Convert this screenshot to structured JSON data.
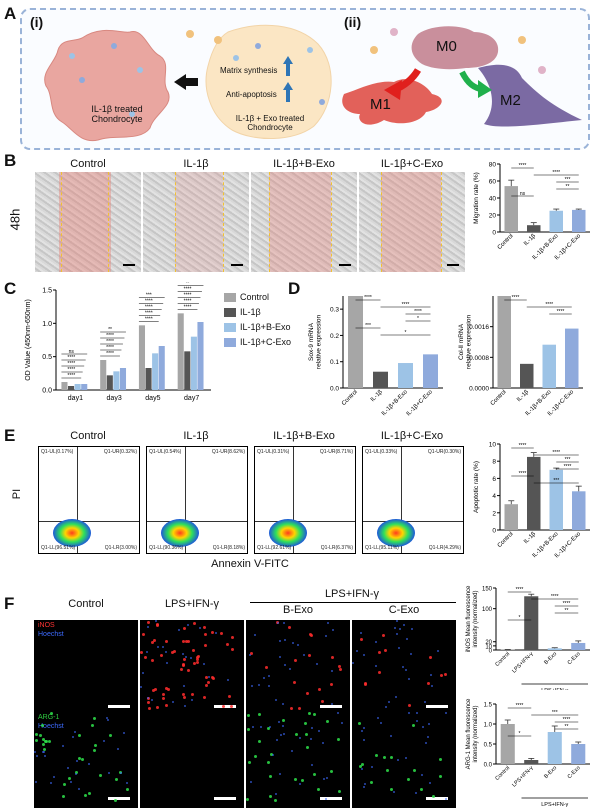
{
  "panels": {
    "A": "A",
    "B": "B",
    "C": "C",
    "D": "D",
    "E": "E",
    "F": "F"
  },
  "panelA": {
    "sub_i": "(i)",
    "sub_ii": "(ii)",
    "cell1_label": "IL-1β treated\nChondrocyte",
    "cell2_label": "IL-1β + Exo treated\nChondrocyte",
    "matrix": "Matrix synthesis",
    "antiapop": "Anti-apoptosis",
    "m0": "M0",
    "m1": "M1",
    "m2": "M2",
    "colors": {
      "border": "#9ab3d8",
      "cell1": "#e9a6a0",
      "cell2": "#fbe6c4",
      "m0": "#c98f9c",
      "m1": "#e2615a",
      "m2": "#7b6aa3",
      "red_arrow": "#e0201d",
      "green_arrow": "#20b04c"
    }
  },
  "panelB": {
    "timepoint": "48h",
    "groups": [
      "Control",
      "IL-1β",
      "IL-1β+B-Exo",
      "IL-1β+C-Exo"
    ]
  },
  "panelE": {
    "groups": [
      "Control",
      "IL-1β",
      "IL-1β+B-Exo",
      "IL-1β+C-Exo"
    ],
    "y_label": "PI",
    "x_label": "Annexin V-FITC",
    "quadrants": [
      {
        "ul": "Q1-UL(0.17%)",
        "ur": "Q1-UR(0.32%)",
        "ll": "Q1-LL(96.51%)",
        "lr": "Q1-LR(3.00%)"
      },
      {
        "ul": "Q1-UL(0.54%)",
        "ur": "Q1-UR(8.62%)",
        "ll": "Q1-LL(90.36%)",
        "lr": "Q1-LR(8.18%)"
      },
      {
        "ul": "Q1-UL(0.31%)",
        "ur": "Q1-UR(8.71%)",
        "ll": "Q1-LL(92.61%)",
        "lr": "Q1-LR(6.37%)"
      },
      {
        "ul": "Q1-UL(0.33%)",
        "ur": "Q1-UR(0.30%)",
        "ll": "Q1-LL(95.11%)",
        "lr": "Q1-LR(4.29%)"
      }
    ]
  },
  "panelF": {
    "head_control": "Control",
    "head_lps": "LPS+IFN-γ",
    "head_group": "LPS+IFN-γ",
    "head_b": "B-Exo",
    "head_c": "C-Exo",
    "stain1": "iNOS",
    "stain1b": "Hoechst",
    "stain2": "ARG-1",
    "stain2b": "Hoechst"
  },
  "chart_data": [
    {
      "id": "B-migration",
      "type": "bar",
      "categories": [
        "Control",
        "IL-1β",
        "IL-1β+B-Exo",
        "IL-1β+C-Exo"
      ],
      "values": [
        54,
        8,
        25,
        26
      ],
      "errors": [
        7,
        3,
        2,
        1
      ],
      "colors": [
        "#a6a6a6",
        "#555555",
        "#9dc3e6",
        "#8faadc"
      ],
      "ylabel": "Migration rate (%)",
      "ylim": [
        0,
        80
      ],
      "yticks": [
        "0",
        "20",
        "40",
        "60",
        "80"
      ],
      "sig": [
        "****",
        "****",
        "***",
        "**",
        "ns"
      ]
    },
    {
      "id": "C-OD",
      "type": "bar",
      "categories": [
        "day1",
        "day3",
        "day5",
        "day7"
      ],
      "series": [
        {
          "name": "Control",
          "values": [
            0.12,
            0.45,
            0.97,
            1.15
          ],
          "color": "#a6a6a6"
        },
        {
          "name": "IL-1β",
          "values": [
            0.06,
            0.22,
            0.33,
            0.58
          ],
          "color": "#555555"
        },
        {
          "name": "IL-1β+B-Exo",
          "values": [
            0.09,
            0.28,
            0.55,
            0.8
          ],
          "color": "#9dc3e6"
        },
        {
          "name": "IL-1β+C-Exo",
          "values": [
            0.09,
            0.33,
            0.66,
            1.02
          ],
          "color": "#8faadc"
        }
      ],
      "ylabel": "OD Value (450nm-650nm)",
      "ylim": [
        0,
        1.5
      ],
      "yticks": [
        "0.0",
        "0.5",
        "1.0",
        "1.5"
      ],
      "sig_labels": [
        "****",
        "****",
        "****",
        "****",
        "ns",
        "****",
        "****",
        "****",
        "****",
        "**",
        "****",
        "****",
        "****",
        "****",
        "***",
        "****",
        "****",
        "****",
        "****",
        "**"
      ]
    },
    {
      "id": "D-sox9",
      "type": "bar",
      "categories": [
        "Control",
        "IL-1β",
        "IL-1β+B-Exo",
        "IL-1β+C-Exo"
      ],
      "values": [
        0.35,
        0.062,
        0.095,
        0.128
      ],
      "colors": [
        "#a6a6a6",
        "#555555",
        "#9dc3e6",
        "#8faadc"
      ],
      "ylabel": "Sox-9 mRNA\nrelative expression",
      "ylim": [
        0,
        0.35
      ],
      "yticks": [
        "0.0",
        "0.1",
        "0.2",
        "0.3"
      ],
      "sig": [
        "****",
        "****",
        "****",
        "*",
        "***",
        "*"
      ]
    },
    {
      "id": "D-col2",
      "type": "bar",
      "categories": [
        "Control",
        "IL-1β",
        "IL-1β+B-Exo",
        "IL-1β+C-Exo"
      ],
      "values": [
        0.0024,
        0.00063,
        0.00113,
        0.00155
      ],
      "colors": [
        "#a6a6a6",
        "#555555",
        "#9dc3e6",
        "#8faadc"
      ],
      "ylabel": "Col-Ⅱ mRNA\nrelative expression",
      "ylim": [
        0,
        0.0024
      ],
      "yticks": [
        "0.0000",
        "0.0008",
        "0.0016"
      ],
      "sig": [
        "****",
        "****",
        "****"
      ]
    },
    {
      "id": "E-apoptosis",
      "type": "bar",
      "categories": [
        "Control",
        "IL-1β",
        "IL-1β+B-Exo",
        "IL-1β+C-Exo"
      ],
      "values": [
        3,
        8.5,
        7,
        4.5
      ],
      "errors": [
        0.4,
        0.5,
        0.2,
        0.6
      ],
      "colors": [
        "#a6a6a6",
        "#555555",
        "#9dc3e6",
        "#8faadc"
      ],
      "ylabel": "Apoptotic rate (%)",
      "ylim": [
        0,
        10
      ],
      "yticks": [
        "0",
        "2",
        "4",
        "6",
        "8",
        "10"
      ],
      "sig": [
        "****",
        "****",
        "***",
        "****",
        "****",
        "***"
      ]
    },
    {
      "id": "F-inos",
      "type": "bar",
      "categories": [
        "Control",
        "LPS+IFN-γ",
        "B-Exo",
        "C-Exo"
      ],
      "values": [
        1,
        130,
        4,
        17
      ],
      "errors": [
        0.3,
        5,
        1.5,
        5
      ],
      "colors": [
        "#a6a6a6",
        "#555555",
        "#9dc3e6",
        "#8faadc"
      ],
      "ylabel": "iNOS Mean fluorescence\nintensity (normalized)",
      "ylim": [
        0,
        150
      ],
      "yticks": [
        "0",
        "10",
        "20",
        "100",
        "150"
      ],
      "xgroup": "LPS+IFN-γ",
      "sig": [
        "****",
        "****",
        "****",
        "**",
        "*"
      ]
    },
    {
      "id": "F-arg1",
      "type": "bar",
      "categories": [
        "Control",
        "LPS+IFN-γ",
        "B-Exo",
        "C-Exo"
      ],
      "values": [
        1.0,
        0.1,
        0.8,
        0.5
      ],
      "errors": [
        0.1,
        0.04,
        0.15,
        0.05
      ],
      "colors": [
        "#a6a6a6",
        "#555555",
        "#9dc3e6",
        "#8faadc"
      ],
      "ylabel": "ARG-1 Mean fluorescence\nintensity (normalized)",
      "ylim": [
        0,
        1.5
      ],
      "yticks": [
        "0.0",
        "0.5",
        "1.0",
        "1.5"
      ],
      "xgroup": "LPS+IFN-γ",
      "sig": [
        "****",
        "***",
        "****",
        "**",
        "*"
      ]
    }
  ]
}
